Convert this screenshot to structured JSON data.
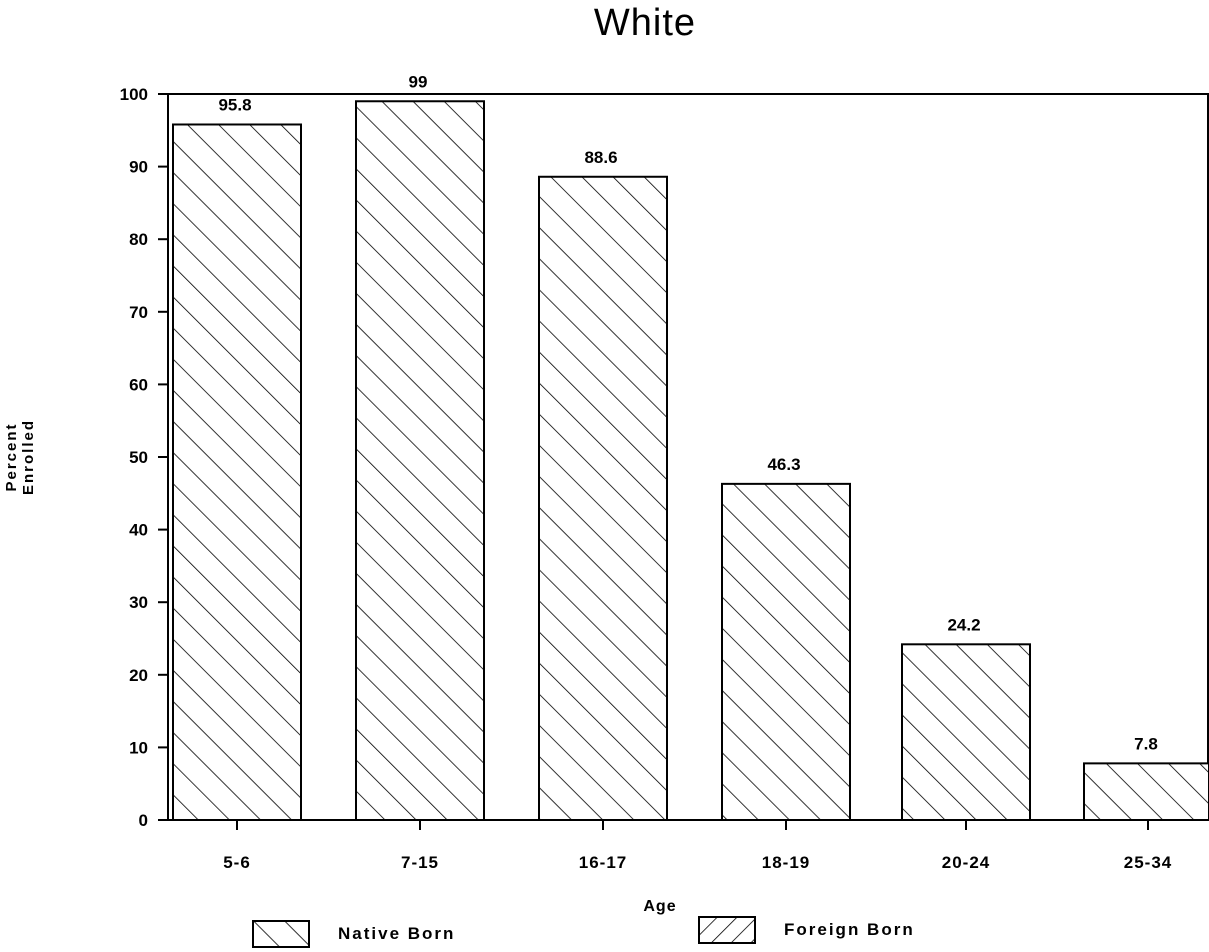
{
  "chart_data": {
    "type": "bar",
    "title": "White",
    "xlabel": "Age",
    "ylabel": "Percent Enrolled",
    "categories": [
      "5-6",
      "7-15",
      "16-17",
      "18-19",
      "20-24",
      "25-34"
    ],
    "series": [
      {
        "name": "Native Born",
        "values": [
          95.8,
          99,
          88.6,
          46.3,
          24.2,
          7.8
        ]
      }
    ],
    "data_labels": [
      "95.8",
      "99",
      "88.6",
      "46.3",
      "24.2",
      "7.8"
    ],
    "legend": [
      {
        "label": "Native Born",
        "pattern": "forward-hatch"
      },
      {
        "label": "Foreign Born",
        "pattern": "back-hatch"
      }
    ],
    "ylim": [
      0,
      100
    ],
    "yticks": [
      0,
      10,
      20,
      30,
      40,
      50,
      60,
      70,
      80,
      90,
      100
    ],
    "grid": false,
    "legend_position": "bottom",
    "colors": {
      "stroke": "#000000",
      "fill": "#ffffff"
    }
  }
}
